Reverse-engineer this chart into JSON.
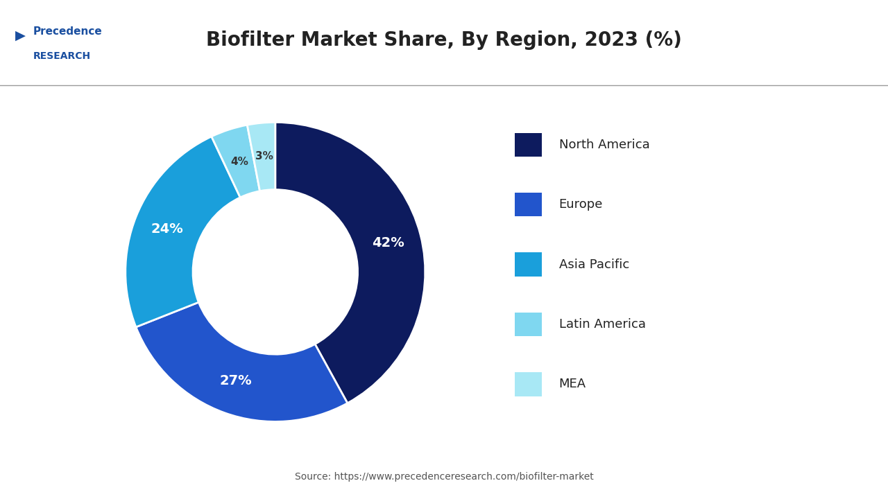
{
  "title": "Biofilter Market Share, By Region, 2023 (%)",
  "title_fontsize": 20,
  "labels": [
    "North America",
    "Europe",
    "Asia Pacific",
    "Latin America",
    "MEA"
  ],
  "values": [
    42,
    27,
    24,
    4,
    3
  ],
  "colors": [
    "#0d1b5e",
    "#2255cc",
    "#1a9fdb",
    "#7fd7f0",
    "#a8e8f5"
  ],
  "pct_labels": [
    "42%",
    "27%",
    "24%",
    "4%",
    "3%"
  ],
  "source_text": "Source: https://www.precedenceresearch.com/biofilter-market",
  "background_color": "#ffffff",
  "header_line_color": "#cccccc",
  "logo_text_line1": "Precedence",
  "logo_text_line2": "RESEARCH",
  "startangle": 90,
  "donut_width": 0.45
}
